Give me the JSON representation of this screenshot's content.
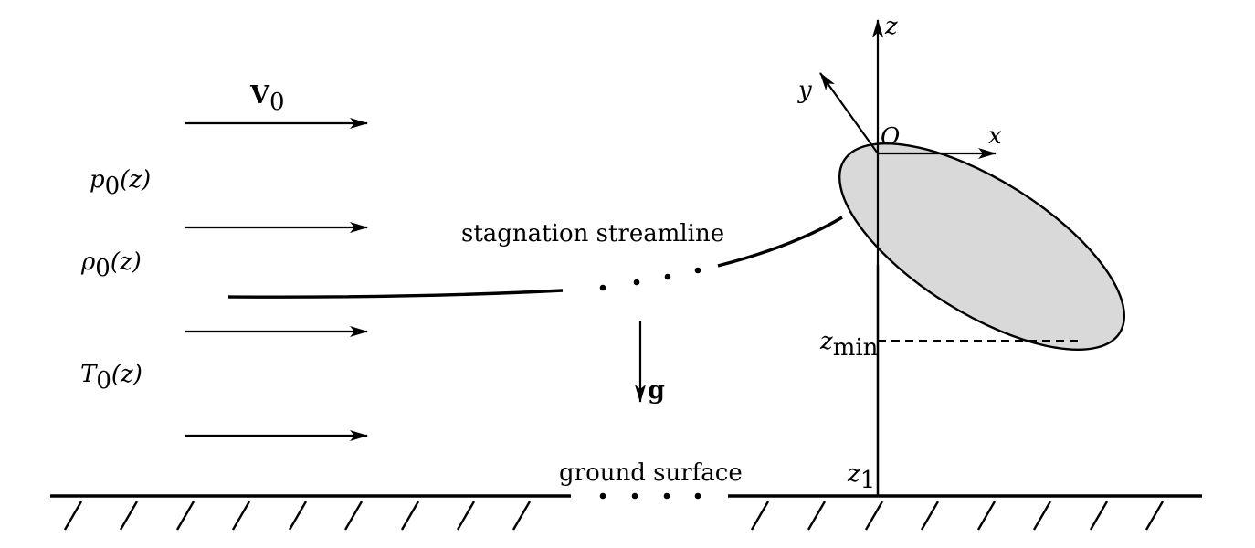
{
  "labels": {
    "freestream_velocity": "V",
    "freestream_velocity_sub": "0",
    "pressure": "p",
    "pressure_sub": "0",
    "pressure_arg": "(z)",
    "density": "ρ",
    "density_sub": "0",
    "density_arg": "(z)",
    "temperature": "T",
    "temperature_sub": "0",
    "temperature_arg": "(z)",
    "streamline": "stagnation streamline",
    "gravity": "g",
    "ground": "ground surface",
    "axis_z": "z",
    "axis_y": "y",
    "axis_x": "x",
    "origin": "O",
    "z_min": "z",
    "z_min_sub": "min",
    "z_1": "z",
    "z_1_sub": "1"
  },
  "colors": {
    "body_fill": "#d9d9d9",
    "ink": "#000000"
  }
}
